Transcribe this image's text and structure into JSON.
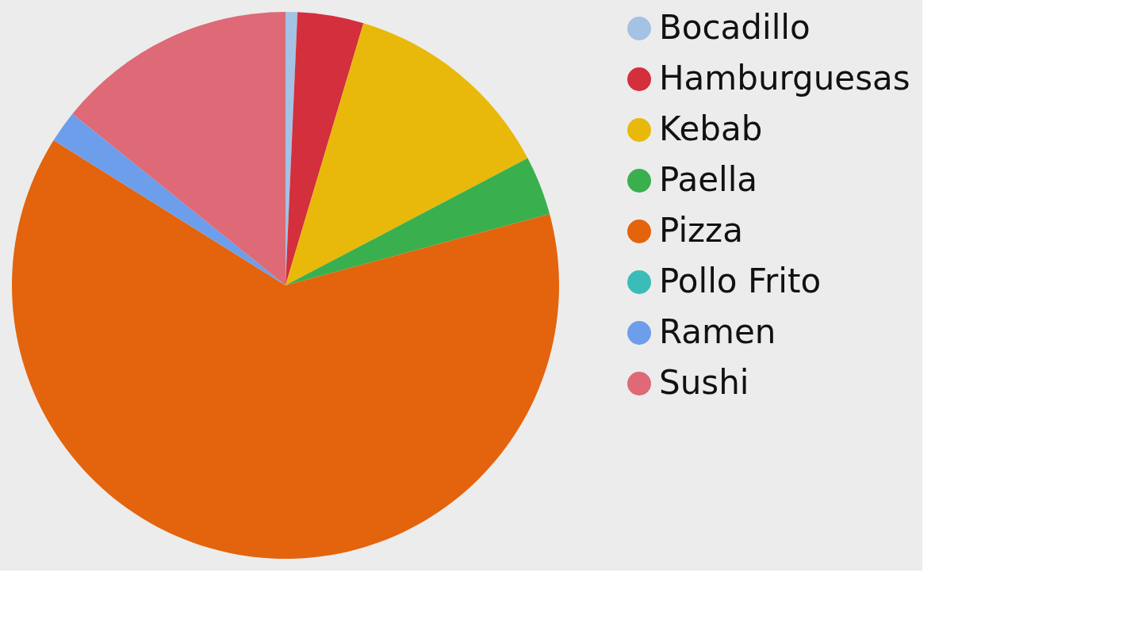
{
  "chart_data": {
    "type": "pie",
    "categories": [
      "Bocadillo",
      "Hamburguesas",
      "Kebab",
      "Paella",
      "Pizza",
      "Pollo Frito",
      "Ramen",
      "Sushi"
    ],
    "values": [
      0.7,
      3.9,
      12.7,
      3.5,
      63.1,
      0,
      1.9,
      14.2
    ],
    "colors": [
      "#a4c2e4",
      "#d42f3c",
      "#e8b90a",
      "#3aaf4e",
      "#e3640c",
      "#3bbcb8",
      "#6d9eeb",
      "#dd6a76"
    ],
    "legend": "right"
  }
}
